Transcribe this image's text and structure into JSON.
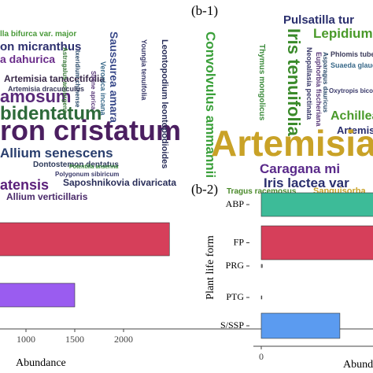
{
  "labels": {
    "b1": "(b-1)",
    "b2": "(b-2)"
  },
  "word_clouds": [
    {
      "words": [
        {
          "text": "lla bifurca var. major",
          "color": "#4a9a3a"
        },
        {
          "text": "on micranthus",
          "color": "#2c2f6e"
        },
        {
          "text": "a dahurica",
          "color": "#6a2c8a"
        },
        {
          "text": "Artemisia tanacetifolia",
          "color": "#3a2a4a"
        },
        {
          "text": "amosum",
          "color": "#5a2a7a"
        },
        {
          "text": "bidentatum",
          "color": "#2d6a3a"
        },
        {
          "text": "ron cristatum",
          "color": "#4b1f60"
        },
        {
          "text": "Allium senescens",
          "color": "#2a3f6e"
        },
        {
          "text": "Dontostemon dentatus",
          "color": "#2d3a5a"
        },
        {
          "text": "Polygonum sibiricum",
          "color": "#3a3a6a"
        },
        {
          "text": "Saposhnikovia divaricata",
          "color": "#2a2f5a"
        },
        {
          "text": "atensis",
          "color": "#5a1f7a"
        },
        {
          "text": "Allium verticillaris",
          "color": "#4a2a6a"
        },
        {
          "text": "Potentilla anserina",
          "color": "#3a8a3a"
        },
        {
          "text": "Saussurea amara",
          "color": "#3a4a8a"
        },
        {
          "text": "Leontopodium leontopodioides",
          "color": "#2a2f5a"
        },
        {
          "text": "Youngia tenuifolia",
          "color": "#3a3a6a"
        },
        {
          "text": "Veronica incana",
          "color": "#3a6a8a"
        },
        {
          "text": "Silene aprica",
          "color": "#5a3a7a"
        },
        {
          "text": "Ixeridium chinense",
          "color": "#2a4a6a"
        },
        {
          "text": "Astragalus adsurgens",
          "color": "#3a7a3a"
        },
        {
          "text": "Artemisia dracunculus",
          "color": "#3a3a5a"
        }
      ]
    },
    {
      "words": [
        {
          "text": "Pulsatilla tur",
          "color": "#2a2f6e"
        },
        {
          "text": "Lepidium",
          "color": "#4a9a2a"
        },
        {
          "text": "Iris tenuifolia",
          "color": "#3a8a2a"
        },
        {
          "text": "Convolvulus ammannii",
          "color": "#3aa03a"
        },
        {
          "text": "Thymus mongolicus",
          "color": "#3a8a3a"
        },
        {
          "text": "Neopallasia pectinata",
          "color": "#3a3a6a"
        },
        {
          "text": "Euphorbia fischeriana",
          "color": "#5a3a7a"
        },
        {
          "text": "Asparagus dauricus",
          "color": "#2a4a6a"
        },
        {
          "text": "Phlomis tuberosa",
          "color": "#3a3a5a"
        },
        {
          "text": "Suaeda glauca",
          "color": "#3a6a8a"
        },
        {
          "text": "Oxytropis bicolor",
          "color": "#3a3a6a"
        },
        {
          "text": "Achillea a",
          "color": "#4a9a2a"
        },
        {
          "text": "Artemisi",
          "color": "#2a2f6e"
        },
        {
          "text": "Artemisia",
          "color": "#c9a227"
        },
        {
          "text": "Caragana mi",
          "color": "#5a2a8a"
        },
        {
          "text": "Iris lactea var",
          "color": "#2a2f6e"
        },
        {
          "text": "Tragus racemosus",
          "color": "#4a8a2a"
        },
        {
          "text": "Sanguisorba",
          "color": "#c9a227"
        }
      ]
    }
  ],
  "chart_data": [
    {
      "type": "barh",
      "categories": [
        null,
        null
      ],
      "values": [
        2470,
        1500
      ],
      "colors": [
        "#d63f5a",
        "#9a5cf0"
      ],
      "xlim": [
        0,
        2500
      ],
      "xticks": [
        1000,
        1500,
        2000
      ],
      "xlabel": "Abundance"
    },
    {
      "type": "barh",
      "categories": [
        "ABP",
        "FP",
        "PRG",
        "PTG",
        "S/SSP"
      ],
      "values": [
        1000,
        1000,
        5,
        3,
        370
      ],
      "colors": [
        "#3dbb98",
        "#d63f5a",
        "#8a8a8a",
        "#8a8a8a",
        "#5b9bf0"
      ],
      "xlim": [
        0,
        1000
      ],
      "xticks": [
        0
      ],
      "xlabel": "Abundance",
      "ylabel": "Plant life form"
    }
  ]
}
